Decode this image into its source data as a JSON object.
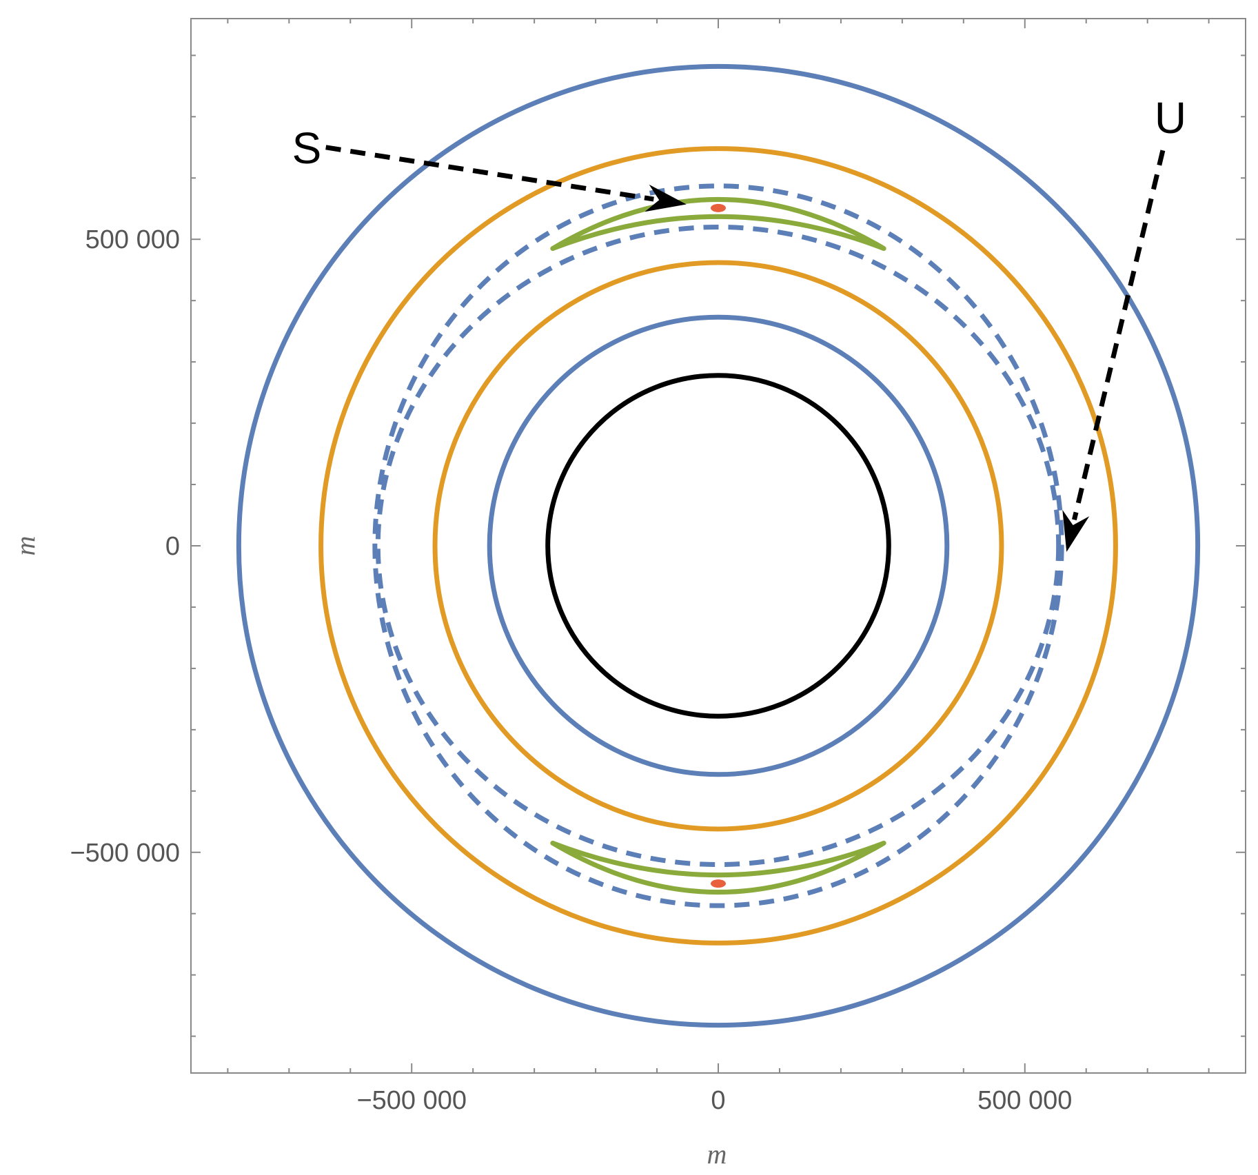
{
  "chart_data": {
    "type": "line",
    "title": "",
    "xlabel": "m",
    "ylabel": "m",
    "xlim": [
      -860000,
      860000
    ],
    "ylim": [
      -860000,
      860000
    ],
    "xticks": [
      -500000,
      0,
      500000
    ],
    "yticks": [
      -500000,
      0,
      500000
    ],
    "xtick_labels": [
      "−500 000",
      "0",
      "500 000"
    ],
    "ytick_labels": [
      "−500 000",
      "0",
      "500 000"
    ],
    "grid": false,
    "aspect": "equal",
    "colors": {
      "blue": "#5b7fb6",
      "orange": "#e19b25",
      "green": "#8aaa3b",
      "red": "#e8603c",
      "black": "#000000"
    },
    "series": [
      {
        "kind": "circle",
        "color": "blue",
        "style": "solid",
        "cx": 0,
        "cy": 0,
        "r": 782000
      },
      {
        "kind": "circle",
        "color": "orange",
        "style": "solid",
        "cx": 0,
        "cy": 0,
        "r": 648000
      },
      {
        "kind": "circle",
        "color": "orange",
        "style": "solid",
        "cx": 0,
        "cy": 0,
        "r": 462000
      },
      {
        "kind": "circle",
        "color": "blue",
        "style": "solid",
        "cx": 0,
        "cy": 0,
        "r": 373000
      },
      {
        "kind": "circle",
        "color": "black",
        "style": "solid",
        "cx": 0,
        "cy": 0,
        "r": 278000
      },
      {
        "kind": "ring",
        "color": "blue",
        "style": "dashed",
        "outer": {
          "cx": 0,
          "cy": 0,
          "rx": 560000,
          "ry": 587000
        },
        "inner": {
          "cx": 0,
          "cy": 0,
          "rx": 555000,
          "ry": 520000
        }
      },
      {
        "kind": "crescent",
        "color": "green",
        "style": "solid",
        "position": "top",
        "x_extent": [
          -270000,
          270000
        ],
        "y_tip": 485000,
        "y_outer_mid": 565000,
        "y_inner_mid": 537000
      },
      {
        "kind": "crescent",
        "color": "green",
        "style": "solid",
        "position": "bottom",
        "x_extent": [
          -270000,
          270000
        ],
        "y_tip": -485000,
        "y_outer_mid": -565000,
        "y_inner_mid": -537000
      },
      {
        "kind": "marker",
        "color": "red",
        "x": 0,
        "y": 551000
      },
      {
        "kind": "marker",
        "color": "red",
        "x": 0,
        "y": -551000
      }
    ],
    "annotations": [
      {
        "id": "S",
        "text": "S",
        "from": [
          -640000,
          650000
        ],
        "to": [
          -52000,
          557000
        ],
        "style": "dashed-arrow"
      },
      {
        "id": "U",
        "text": "U",
        "from": [
          725000,
          645000
        ],
        "to": [
          568000,
          -10000
        ],
        "style": "dashed-arrow"
      }
    ]
  }
}
